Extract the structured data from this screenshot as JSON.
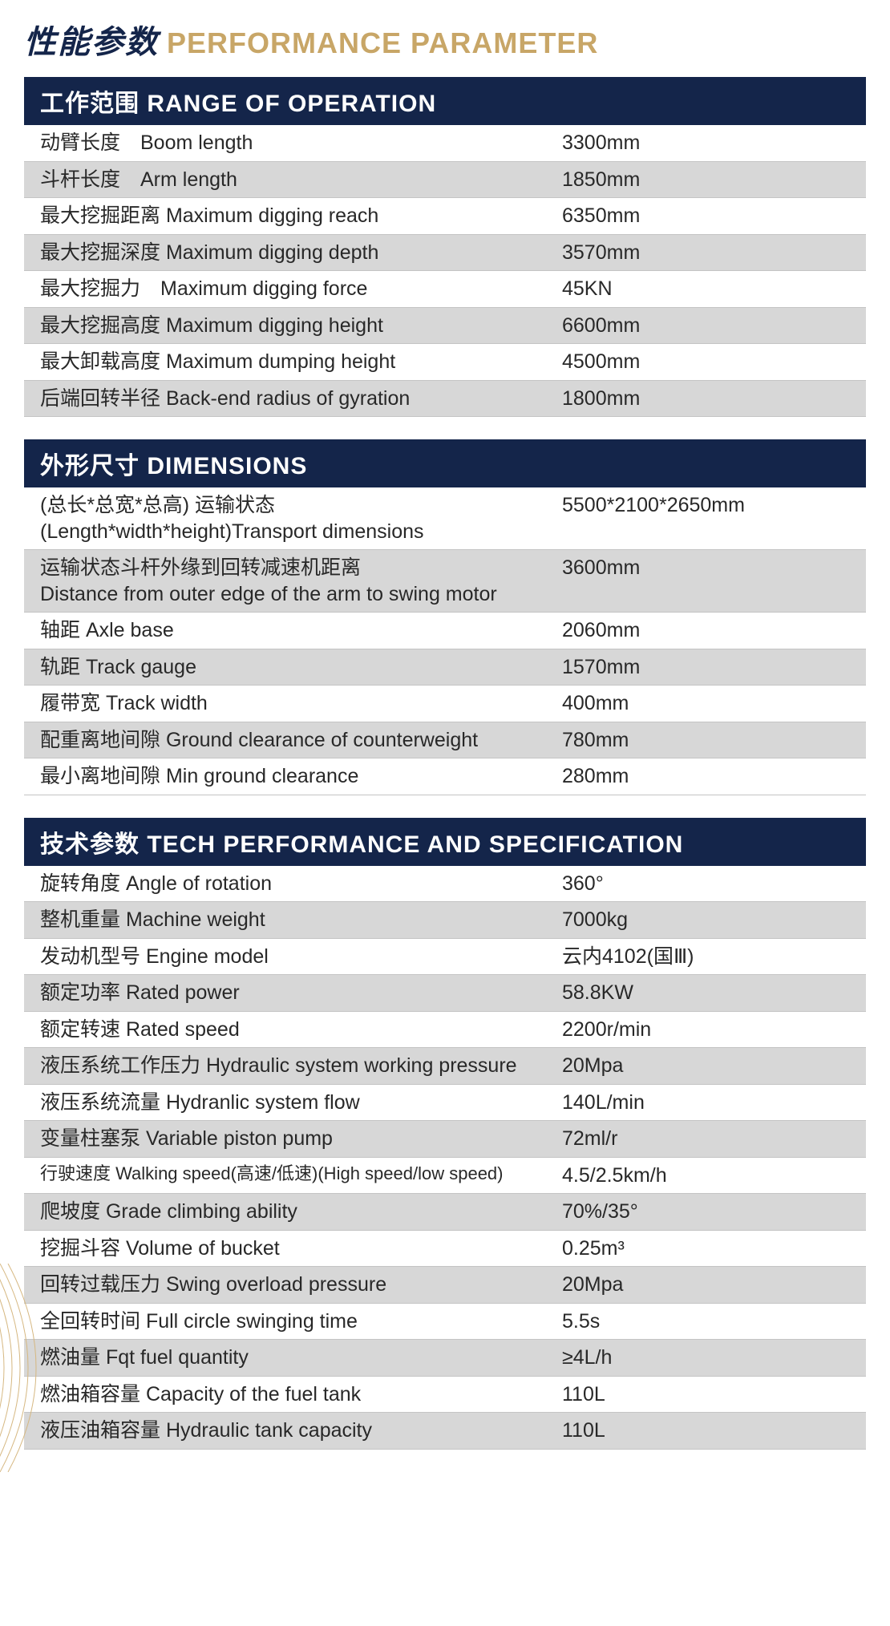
{
  "colors": {
    "title_zh": "#14254a",
    "title_en": "#c8a667",
    "section_bg": "#14254a",
    "section_text": "#ffffff",
    "row_even_bg": "#ffffff",
    "row_odd_bg": "#d7d7d7",
    "row_text": "#282828",
    "border": "#c4c4c4",
    "deco_line": "#d6b882"
  },
  "page_title": {
    "zh": "性能参数",
    "en": "PERFORMANCE PARAMETER"
  },
  "sections": [
    {
      "header": "工作范围 RANGE OF OPERATION",
      "rows": [
        {
          "label": "动臂长度　Boom length",
          "value": "3300mm"
        },
        {
          "label": "斗杆长度　Arm length",
          "value": "1850mm"
        },
        {
          "label": "最大挖掘距离 Maximum digging reach",
          "value": "6350mm"
        },
        {
          "label": "最大挖掘深度 Maximum digging depth",
          "value": "3570mm"
        },
        {
          "label": "最大挖掘力　Maximum digging force",
          "value": "45KN"
        },
        {
          "label": "最大挖掘高度 Maximum digging height",
          "value": "6600mm"
        },
        {
          "label": "最大卸载高度 Maximum dumping height",
          "value": "4500mm"
        },
        {
          "label": "后端回转半径 Back-end radius of gyration",
          "value": "1800mm"
        }
      ]
    },
    {
      "header": "外形尺寸 DIMENSIONS",
      "rows": [
        {
          "label": "(总长*总宽*总高) 运输状态\n(Length*width*height)Transport dimensions",
          "value": "5500*2100*2650mm"
        },
        {
          "label": "运输状态斗杆外缘到回转减速机距离\nDistance from outer edge of the arm to swing motor",
          "value": "3600mm"
        },
        {
          "label": "轴距 Axle base",
          "value": "2060mm"
        },
        {
          "label": "轨距 Track gauge",
          "value": "1570mm"
        },
        {
          "label": "履带宽 Track width",
          "value": "400mm"
        },
        {
          "label": "配重离地间隙 Ground clearance of counterweight",
          "value": "780mm"
        },
        {
          "label": "最小离地间隙 Min ground clearance",
          "value": "280mm"
        }
      ]
    },
    {
      "header": "技术参数 TECH PERFORMANCE AND SPECIFICATION",
      "rows": [
        {
          "label": "旋转角度 Angle of rotation",
          "value": "360°"
        },
        {
          "label": "整机重量 Machine weight",
          "value": "7000kg"
        },
        {
          "label": "发动机型号 Engine model",
          "value": "云内4102(国Ⅲ)"
        },
        {
          "label": "额定功率 Rated power",
          "value": "58.8KW"
        },
        {
          "label": "额定转速 Rated speed",
          "value": "2200r/min"
        },
        {
          "label": "液压系统工作压力 Hydraulic system working pressure",
          "value": "20Mpa"
        },
        {
          "label": "液压系统流量 Hydranlic system flow",
          "value": "140L/min"
        },
        {
          "label": "变量柱塞泵 Variable piston pump",
          "value": "72ml/r"
        },
        {
          "label": "行驶速度 Walking speed(高速/低速)(High speed/low speed)",
          "value": "4.5/2.5km/h",
          "small": true
        },
        {
          "label": "爬坡度 Grade climbing ability",
          "value": "70%/35°"
        },
        {
          "label": "挖掘斗容 Volume of bucket",
          "value": "0.25m³"
        },
        {
          "label": "回转过载压力 Swing overload pressure",
          "value": "20Mpa"
        },
        {
          "label": "全回转时间 Full circle swinging time",
          "value": "5.5s"
        },
        {
          "label": "燃油量 Fqt fuel quantity",
          "value": "≥4L/h"
        },
        {
          "label": "燃油箱容量 Capacity of the fuel tank",
          "value": "110L"
        },
        {
          "label": "液压油箱容量  Hydraulic tank capacity",
          "value": "110L"
        }
      ]
    }
  ]
}
